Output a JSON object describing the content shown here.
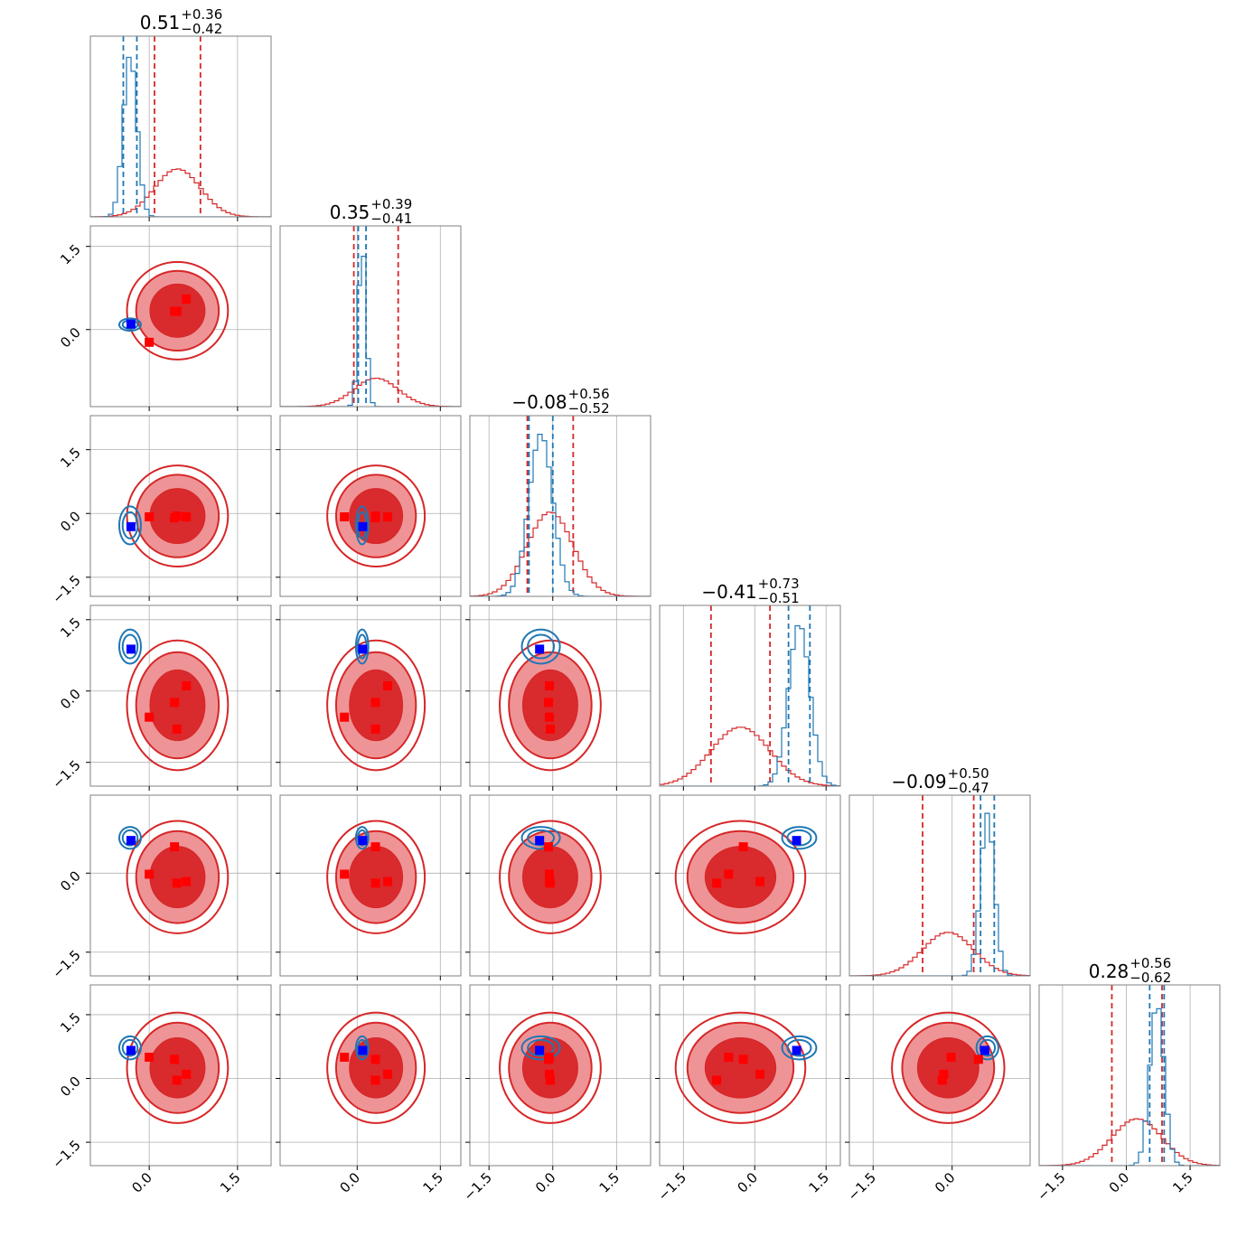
{
  "chart_data": {
    "type": "corner",
    "parameters": [
      {
        "median_label": "0.51",
        "plus_label": "+0.36",
        "minus_label": "−0.42",
        "lim": [
          -1.0,
          2.07
        ],
        "ticks": [
          {
            "value": 0,
            "label": "0.0"
          },
          {
            "value": 1.5,
            "label": "1.5"
          }
        ]
      },
      {
        "median_label": "0.35",
        "plus_label": "+0.39",
        "minus_label": "−0.41",
        "lim": [
          -1.39,
          1.87
        ],
        "ticks": [
          {
            "value": 0,
            "label": "0.0"
          },
          {
            "value": 1.5,
            "label": "1.5"
          }
        ]
      },
      {
        "median_label": "−0.08",
        "plus_label": "+0.56",
        "minus_label": "−0.52",
        "lim": [
          -1.95,
          2.3
        ],
        "ticks": [
          {
            "value": -1.5,
            "label": "−1.5"
          },
          {
            "value": 0,
            "label": "0.0"
          },
          {
            "value": 1.5,
            "label": "1.5"
          }
        ]
      },
      {
        "median_label": "−0.41",
        "plus_label": "+0.73",
        "minus_label": "−0.51",
        "lim": [
          -2.0,
          1.8
        ],
        "ticks": [
          {
            "value": -1.5,
            "label": "−1.5"
          },
          {
            "value": 0,
            "label": "0.0"
          },
          {
            "value": 1.5,
            "label": "1.5"
          }
        ]
      },
      {
        "median_label": "−0.09",
        "plus_label": "+0.50",
        "minus_label": "−0.47",
        "lim": [
          -1.95,
          1.48
        ],
        "ticks": [
          {
            "value": -1.5,
            "label": "−1.5"
          },
          {
            "value": 0,
            "label": "0.0"
          }
        ]
      },
      {
        "median_label": "0.28",
        "plus_label": "+0.56",
        "minus_label": "−0.62",
        "lim": [
          -2.05,
          2.2
        ],
        "ticks": [
          {
            "value": -1.5,
            "label": "−1.5"
          },
          {
            "value": 0,
            "label": "0.0"
          },
          {
            "value": 1.5,
            "label": "1.5"
          }
        ]
      }
    ],
    "series": [
      {
        "color": "#d62728",
        "fill_colors": [
          "#ee9497",
          "#d92a2d"
        ],
        "quantiles": [
          [
            0.09,
            0.87
          ],
          [
            -0.06,
            0.74
          ],
          [
            -0.6,
            0.48
          ],
          [
            -0.92,
            0.32
          ],
          [
            -0.56,
            0.41
          ],
          [
            -0.34,
            0.84
          ]
        ]
      },
      {
        "color": "#1f77b4",
        "quantiles": [
          [
            -0.44,
            -0.21
          ],
          [
            0.02,
            0.16
          ],
          [
            -0.56,
            0.0
          ],
          [
            0.71,
            1.16
          ],
          [
            0.54,
            0.8
          ],
          [
            0.55,
            0.89
          ]
        ]
      }
    ],
    "truths": [
      {
        "color": "#ff0000",
        "points": [
          [
            0.0,
            -0.23,
            -0.08,
            -0.55,
            -0.02,
            0.5
          ],
          [
            0.43,
            0.33,
            -0.1,
            -0.24,
            0.5,
            0.45
          ],
          [
            0.47,
            0.33,
            -0.06,
            -0.8,
            -0.19,
            -0.04
          ],
          [
            0.63,
            0.55,
            -0.08,
            0.11,
            -0.16,
            0.1
          ]
        ]
      },
      {
        "color": "#0000ff",
        "points": [
          [
            -0.31,
            0.1,
            -0.31,
            0.88,
            0.62,
            0.66
          ]
        ]
      }
    ],
    "grid": true
  }
}
